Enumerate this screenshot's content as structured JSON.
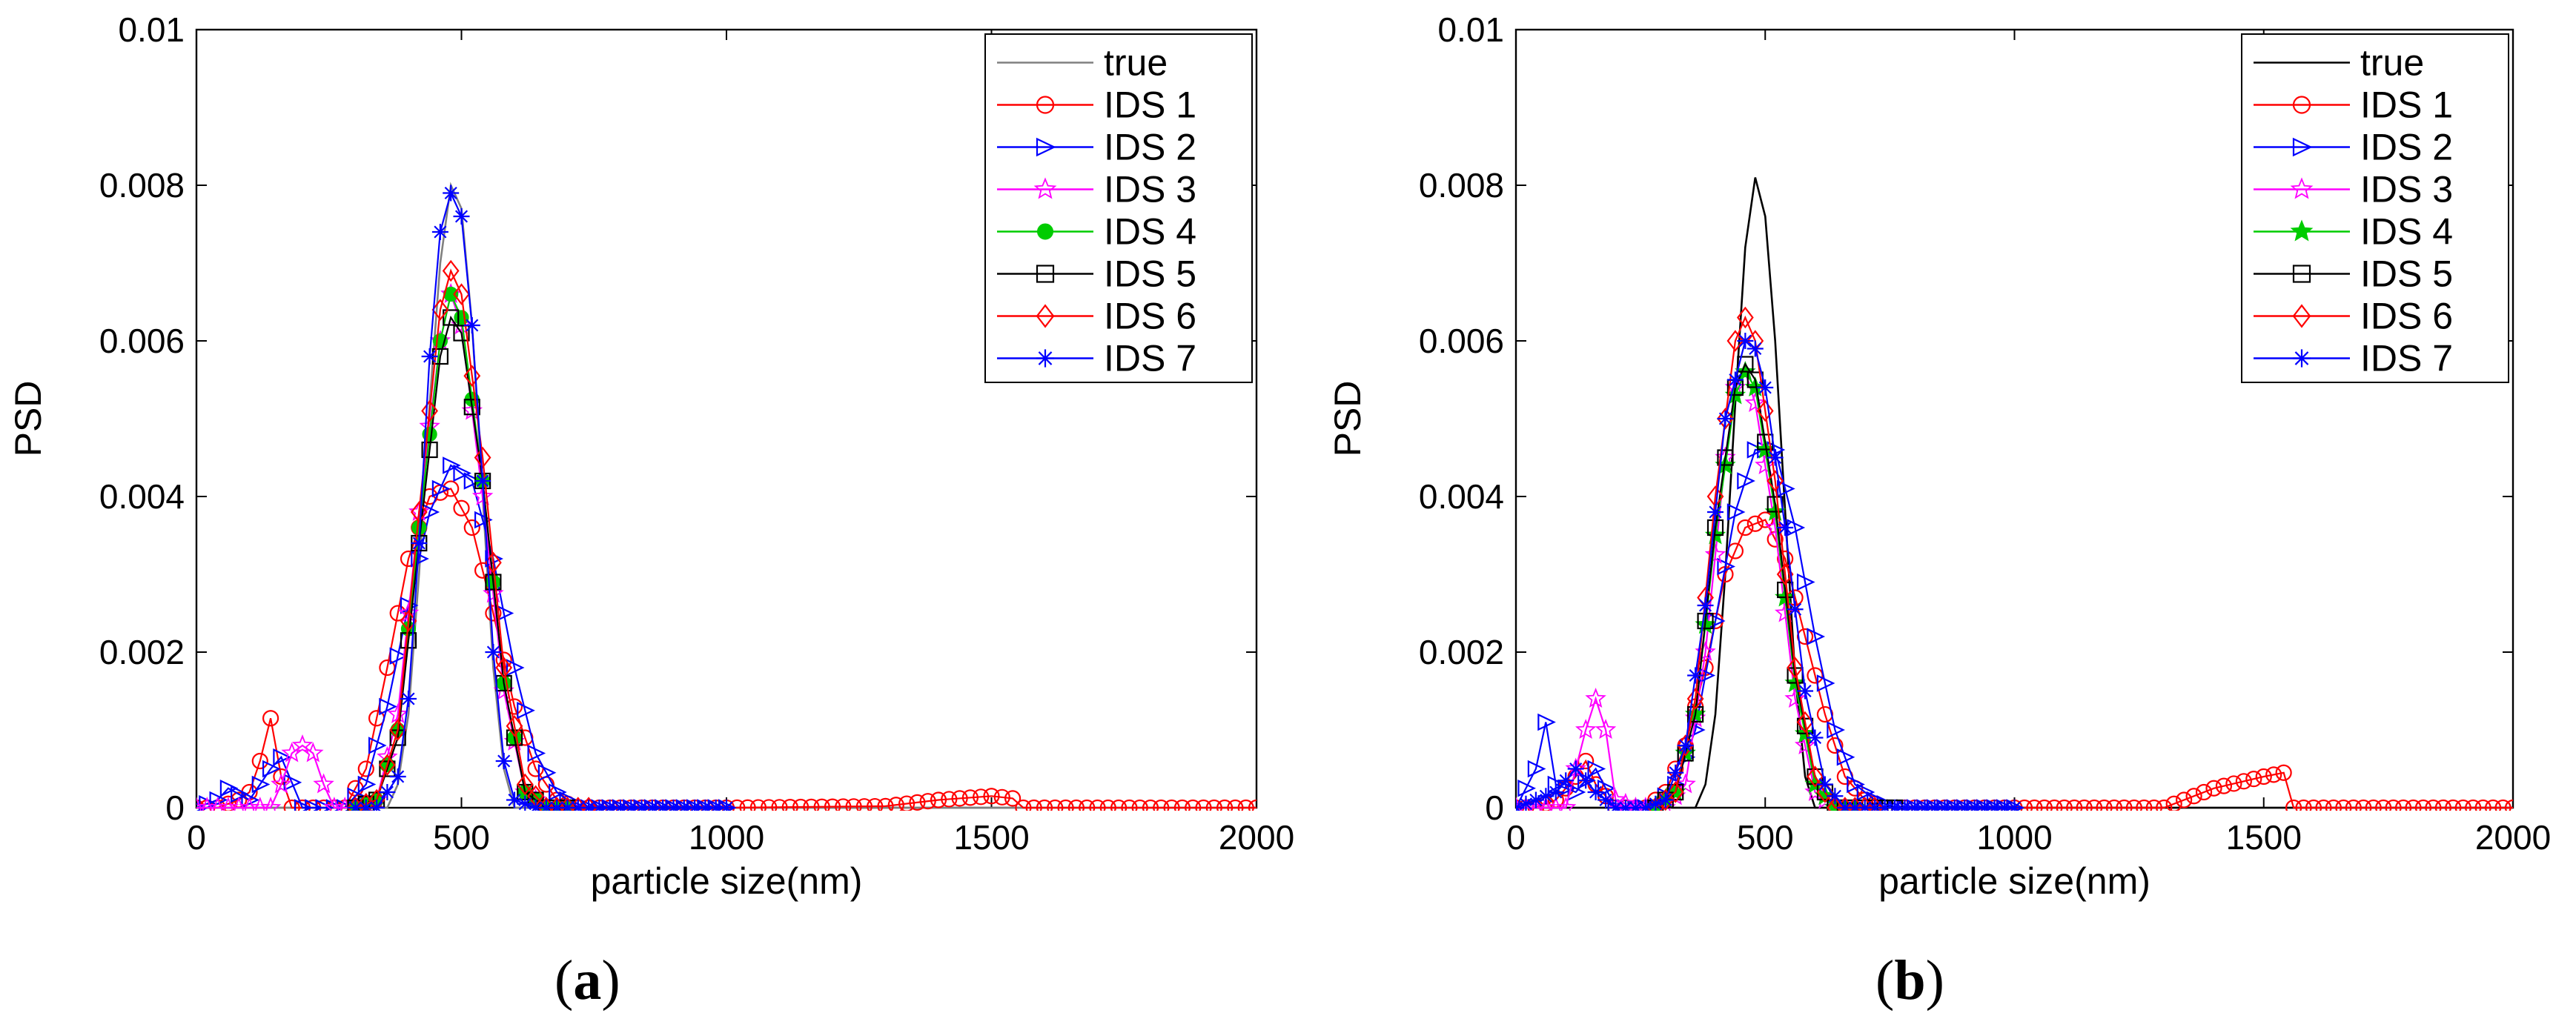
{
  "figure_labels": {
    "a": {
      "open": "(",
      "letter": "a",
      "close": ")"
    },
    "b": {
      "open": "(",
      "letter": "b",
      "close": ")"
    }
  },
  "colors": {
    "true": "#000000",
    "IDS 1": "#ff0000",
    "IDS 2": "#0000ff",
    "IDS 3": "#ff00ff",
    "IDS 4": "#00cc00",
    "IDS 5": "#000000",
    "IDS 6": "#ff0000",
    "IDS 7": "#0000ff",
    "true_a": "#808080"
  },
  "chart_data": [
    {
      "id": "a",
      "type": "line",
      "xlabel": "particle size(nm)",
      "ylabel": "PSD",
      "xlim": [
        0,
        2000
      ],
      "ylim": [
        0,
        0.01
      ],
      "xticks": [
        "0",
        "500",
        "1000",
        "1500",
        "2000"
      ],
      "yticks": [
        "0",
        "0.002",
        "0.004",
        "0.006",
        "0.008",
        "0.01"
      ],
      "legend_position": "top-right",
      "legend": [
        "true",
        "IDS 1",
        "IDS 2",
        "IDS 3",
        "IDS 4",
        "IDS 5",
        "IDS 6",
        "IDS 7"
      ],
      "series": [
        {
          "name": "true",
          "marker": "none",
          "color": "#808080",
          "x": [
            0,
            360,
            380,
            400,
            420,
            440,
            460,
            480,
            500,
            520,
            540,
            560,
            580,
            600,
            2000
          ],
          "y": [
            0,
            0,
            0.0003,
            0.0012,
            0.003,
            0.0052,
            0.007,
            0.008,
            0.0077,
            0.0062,
            0.004,
            0.0018,
            0.0005,
            0,
            0
          ]
        },
        {
          "name": "IDS 1",
          "marker": "circle",
          "color": "#ff0000",
          "x": [
            0,
            40,
            80,
            100,
            120,
            140,
            160,
            180,
            220,
            280,
            320,
            360,
            400,
            440,
            480,
            520,
            560,
            600,
            640,
            680,
            720,
            760,
            800,
            1000,
            1300,
            1400,
            1500,
            1540,
            1560,
            2000
          ],
          "y": [
            0,
            0,
            0.0001,
            0.0002,
            0.0006,
            0.00115,
            0.0004,
            0,
            0,
            0,
            0.0005,
            0.0018,
            0.0032,
            0.004,
            0.0041,
            0.0036,
            0.0025,
            0.0013,
            0.0005,
            0.0001,
            0,
            0,
            0,
            0,
            2e-05,
            0.0001,
            0.00015,
            0.00012,
            0,
            0
          ]
        },
        {
          "name": "IDS 2",
          "marker": "triangle-right",
          "color": "#0000ff",
          "x": [
            0,
            40,
            60,
            100,
            140,
            160,
            200,
            280,
            320,
            360,
            400,
            440,
            480,
            520,
            560,
            600,
            640,
            680,
            720,
            1000
          ],
          "y": [
            0,
            0.0001,
            0.00025,
            0.0001,
            0.0005,
            0.00065,
            0,
            0,
            0.0003,
            0.0013,
            0.0026,
            0.0038,
            0.0044,
            0.0042,
            0.0032,
            0.0018,
            0.0007,
            0.0002,
            0,
            0
          ]
        },
        {
          "name": "IDS 3",
          "marker": "star",
          "color": "#ff00ff",
          "x": [
            0,
            140,
            160,
            180,
            200,
            220,
            240,
            260,
            300,
            340,
            380,
            420,
            460,
            480,
            500,
            540,
            580,
            620,
            660,
            700
          ],
          "y": [
            0,
            0,
            0.0003,
            0.0007,
            0.0008,
            0.0007,
            0.0003,
            0,
            0,
            0.0001,
            0.0012,
            0.0038,
            0.006,
            0.0066,
            0.0062,
            0.004,
            0.0015,
            0.0002,
            0,
            0
          ]
        },
        {
          "name": "IDS 4",
          "marker": "circle-filled",
          "color": "#00cc00",
          "x": [
            300,
            340,
            380,
            420,
            460,
            480,
            500,
            540,
            580,
            620,
            660,
            700
          ],
          "y": [
            0,
            0.0001,
            0.001,
            0.0036,
            0.006,
            0.0066,
            0.0063,
            0.0042,
            0.0016,
            0.0002,
            0,
            0
          ]
        },
        {
          "name": "IDS 5",
          "marker": "square",
          "color": "#000000",
          "x": [
            300,
            340,
            380,
            420,
            460,
            480,
            500,
            540,
            580,
            620,
            660,
            700
          ],
          "y": [
            0,
            0.0001,
            0.0009,
            0.0034,
            0.0058,
            0.0063,
            0.0061,
            0.0042,
            0.0016,
            0.0002,
            0,
            0
          ]
        },
        {
          "name": "IDS 6",
          "marker": "diamond",
          "color": "#ff0000",
          "x": [
            300,
            340,
            380,
            420,
            460,
            480,
            500,
            540,
            580,
            620,
            660,
            700,
            740
          ],
          "y": [
            0,
            0.0001,
            0.001,
            0.0038,
            0.0064,
            0.0069,
            0.0066,
            0.0045,
            0.0018,
            0.0003,
            0,
            0,
            0
          ]
        },
        {
          "name": "IDS 7",
          "marker": "asterisk",
          "color": "#0000ff",
          "x": [
            300,
            340,
            380,
            400,
            420,
            440,
            460,
            480,
            500,
            520,
            540,
            560,
            580,
            600,
            640,
            680,
            1000
          ],
          "y": [
            0,
            0,
            0.0004,
            0.0014,
            0.0034,
            0.0058,
            0.0074,
            0.0079,
            0.0076,
            0.0062,
            0.0042,
            0.002,
            0.0006,
            0.0001,
            0,
            0,
            0
          ]
        }
      ]
    },
    {
      "id": "b",
      "type": "line",
      "xlabel": "particle size(nm)",
      "ylabel": "PSD",
      "xlim": [
        0,
        2000
      ],
      "ylim": [
        0,
        0.01
      ],
      "xticks": [
        "0",
        "500",
        "1000",
        "1500",
        "2000"
      ],
      "yticks": [
        "0",
        "0.002",
        "0.004",
        "0.006",
        "0.008",
        "0.01"
      ],
      "legend_position": "top-right",
      "legend": [
        "true",
        "IDS 1",
        "IDS 2",
        "IDS 3",
        "IDS 4",
        "IDS 5",
        "IDS 6",
        "IDS 7"
      ],
      "series": [
        {
          "name": "true",
          "marker": "none",
          "color": "#000000",
          "x": [
            0,
            360,
            380,
            400,
            420,
            440,
            460,
            480,
            500,
            520,
            540,
            560,
            580,
            600,
            2000
          ],
          "y": [
            0,
            0,
            0.0003,
            0.0012,
            0.003,
            0.0052,
            0.0072,
            0.0081,
            0.0076,
            0.006,
            0.0038,
            0.0017,
            0.0004,
            0,
            0
          ]
        },
        {
          "name": "IDS 1",
          "marker": "circle",
          "color": "#ff0000",
          "x": [
            0,
            40,
            80,
            120,
            140,
            160,
            200,
            260,
            300,
            340,
            380,
            420,
            460,
            500,
            540,
            580,
            620,
            660,
            700,
            740,
            780,
            1000,
            1300,
            1400,
            1500,
            1540,
            1560,
            2000
          ],
          "y": [
            0,
            0,
            0.0001,
            0.0004,
            0.0006,
            0.0003,
            0,
            0,
            0.0002,
            0.0008,
            0.0018,
            0.003,
            0.0036,
            0.0037,
            0.0032,
            0.0022,
            0.0012,
            0.0004,
            0.0001,
            0,
            0,
            0,
            0,
            0.00025,
            0.0004,
            0.00045,
            0,
            0
          ]
        },
        {
          "name": "IDS 2",
          "marker": "triangle-right",
          "color": "#0000ff",
          "x": [
            0,
            40,
            60,
            80,
            120,
            160,
            200,
            280,
            320,
            360,
            400,
            440,
            480,
            520,
            560,
            600,
            640,
            680,
            720,
            760,
            800,
            1000
          ],
          "y": [
            0,
            0.0005,
            0.0011,
            0.0003,
            0.0002,
            0.0005,
            0,
            0,
            0.0003,
            0.001,
            0.0024,
            0.0038,
            0.0046,
            0.0046,
            0.0036,
            0.0022,
            0.001,
            0.0003,
            0.0001,
            0,
            0,
            0
          ]
        },
        {
          "name": "IDS 3",
          "marker": "star",
          "color": "#ff00ff",
          "x": [
            0,
            100,
            120,
            140,
            160,
            180,
            200,
            240,
            300,
            340,
            380,
            420,
            440,
            460,
            480,
            520,
            560,
            600,
            640,
            680
          ],
          "y": [
            0,
            0,
            0.0005,
            0.001,
            0.0014,
            0.001,
            0.0001,
            0,
            0,
            0.0003,
            0.002,
            0.0045,
            0.0054,
            0.0056,
            0.0052,
            0.0036,
            0.0014,
            0.0002,
            0,
            0
          ]
        },
        {
          "name": "IDS 4",
          "marker": "star-filled",
          "color": "#00cc00",
          "x": [
            280,
            320,
            360,
            400,
            440,
            460,
            480,
            520,
            560,
            600,
            640,
            680
          ],
          "y": [
            0,
            0.0002,
            0.0012,
            0.0035,
            0.0053,
            0.0056,
            0.0054,
            0.0038,
            0.0016,
            0.0003,
            0,
            0
          ]
        },
        {
          "name": "IDS 5",
          "marker": "square",
          "color": "#000000",
          "x": [
            280,
            320,
            360,
            400,
            440,
            460,
            480,
            520,
            560,
            600,
            640,
            680,
            720,
            760
          ],
          "y": [
            0,
            0.0002,
            0.0012,
            0.0036,
            0.0054,
            0.0057,
            0.0055,
            0.0039,
            0.0017,
            0.0004,
            0,
            0,
            0,
            0
          ]
        },
        {
          "name": "IDS 6",
          "marker": "diamond",
          "color": "#ff0000",
          "x": [
            280,
            320,
            360,
            400,
            440,
            460,
            480,
            520,
            560,
            600,
            640,
            680,
            720
          ],
          "y": [
            0,
            0.0002,
            0.0014,
            0.004,
            0.006,
            0.0063,
            0.006,
            0.0042,
            0.0018,
            0.0004,
            0,
            0,
            0
          ]
        },
        {
          "name": "IDS 7",
          "marker": "asterisk",
          "color": "#0000ff",
          "x": [
            0,
            80,
            120,
            160,
            200,
            260,
            300,
            340,
            380,
            420,
            460,
            480,
            500,
            540,
            580,
            620,
            660,
            700,
            740,
            1000
          ],
          "y": [
            0,
            0.0002,
            0.0005,
            0.0002,
            0,
            0,
            0.0001,
            0.0008,
            0.0026,
            0.005,
            0.006,
            0.0059,
            0.0054,
            0.0036,
            0.0015,
            0.0003,
            0,
            0,
            0,
            0
          ]
        }
      ]
    }
  ]
}
